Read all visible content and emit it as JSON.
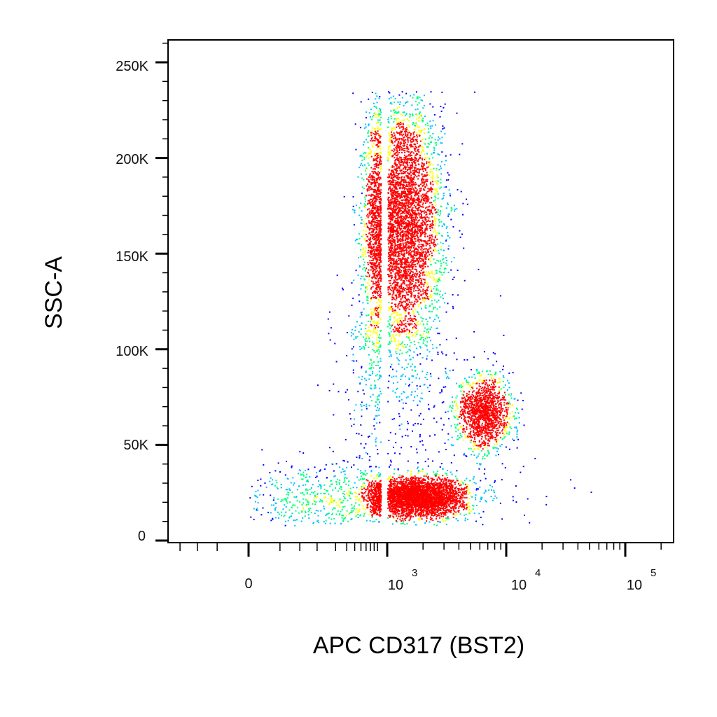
{
  "chart_data": {
    "type": "scatter",
    "title": "",
    "xlabel": "APC CD317 (BST2)",
    "ylabel": "SSC-A",
    "x_scale": "biexponential",
    "x_ticks": [
      "0",
      "10^3",
      "10^4",
      "10^5"
    ],
    "y_ticks": [
      "0",
      "50K",
      "100K",
      "150K",
      "200K",
      "250K"
    ],
    "ylim": [
      0,
      262144
    ],
    "colormap": [
      "#0000ff",
      "#00c0ff",
      "#00ff80",
      "#ffff00",
      "#ff0000"
    ],
    "populations": [
      {
        "x_center": 1300,
        "y_center": 165000,
        "x_spread_log": 0.17,
        "y_spread": 32000,
        "points": 5200
      },
      {
        "x_center": 1800,
        "y_center": 23000,
        "x_spread_log": 0.2,
        "y_spread": 5000,
        "points": 3600
      },
      {
        "x_center": 6500,
        "y_center": 67000,
        "x_spread_log": 0.11,
        "y_spread": 9500,
        "points": 1500
      },
      {
        "x_center": 200,
        "y_center": 22000,
        "x_spread_log": 0.5,
        "y_spread": 9000,
        "points": 650
      },
      {
        "x_center": 1000,
        "y_center": 80000,
        "x_spread_log": 0.35,
        "y_spread": 35000,
        "points": 450
      }
    ]
  }
}
